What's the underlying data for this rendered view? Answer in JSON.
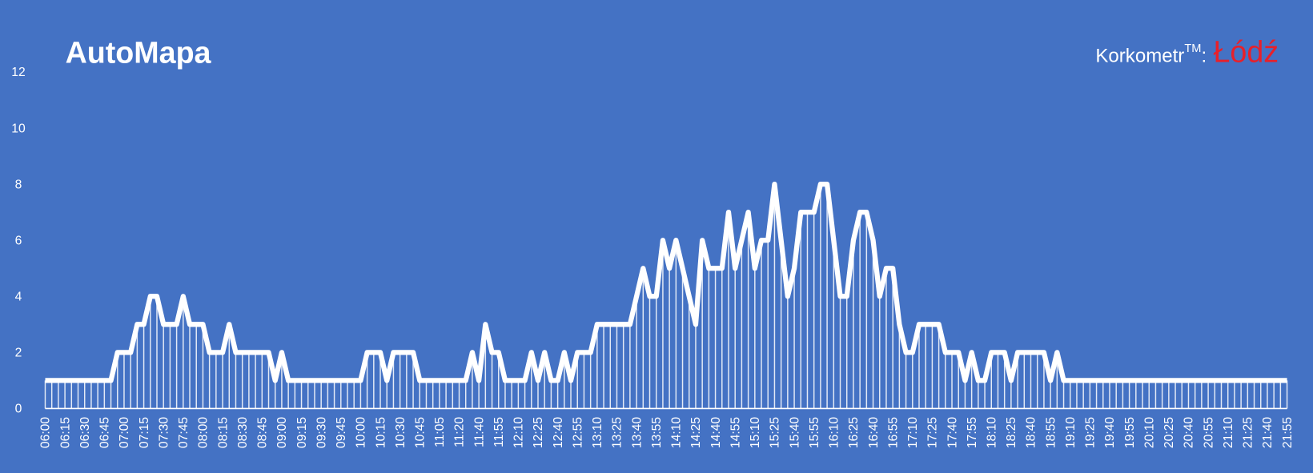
{
  "chart_data": {
    "type": "line",
    "title": "AutoMapa",
    "brand": {
      "name": "Korkometr",
      "mark": "TM",
      "separator": ":",
      "city": "Łódź"
    },
    "color": "#ffffff",
    "drop_lines": true,
    "ylim": [
      0,
      12
    ],
    "yticks": [
      0,
      2,
      4,
      6,
      8,
      10,
      12
    ],
    "categories": [
      "06:00",
      null,
      null,
      "06:15",
      null,
      null,
      "06:30",
      null,
      null,
      "06:45",
      null,
      null,
      "07:00",
      null,
      null,
      "07:15",
      null,
      null,
      "07:30",
      null,
      null,
      "07:45",
      null,
      null,
      "08:00",
      null,
      null,
      "08:15",
      null,
      null,
      "08:30",
      null,
      null,
      "08:45",
      null,
      null,
      "09:00",
      null,
      null,
      "09:15",
      null,
      null,
      "09:30",
      null,
      null,
      "09:45",
      null,
      null,
      "10:00",
      null,
      null,
      "10:15",
      null,
      null,
      "10:30",
      null,
      null,
      "10:45",
      null,
      null,
      "11:05",
      null,
      null,
      "11:20",
      null,
      null,
      "11:40",
      null,
      null,
      "11:55",
      null,
      null,
      "12:10",
      null,
      null,
      "12:25",
      null,
      null,
      "12:40",
      null,
      null,
      "12:55",
      null,
      null,
      "13:10",
      null,
      null,
      "13:25",
      null,
      null,
      "13:40",
      null,
      null,
      "13:55",
      null,
      null,
      "14:10",
      null,
      null,
      "14:25",
      null,
      null,
      "14:40",
      null,
      null,
      "14:55",
      null,
      null,
      "15:10",
      null,
      null,
      "15:25",
      null,
      null,
      "15:40",
      null,
      null,
      "15:55",
      null,
      null,
      "16:10",
      null,
      null,
      "16:25",
      null,
      null,
      "16:40",
      null,
      null,
      "16:55",
      null,
      null,
      "17:10",
      null,
      null,
      "17:25",
      null,
      null,
      "17:40",
      null,
      null,
      "17:55",
      null,
      null,
      "18:10",
      null,
      null,
      "18:25",
      null,
      null,
      "18:40",
      null,
      null,
      "18:55",
      null,
      null,
      "19:10",
      null,
      null,
      "19:25",
      null,
      null,
      "19:40",
      null,
      null,
      "19:55",
      null,
      null,
      "20:10",
      null,
      null,
      "20:25",
      null,
      null,
      "20:40",
      null,
      null,
      "20:55",
      null,
      null,
      "21:10",
      null,
      null,
      "21:25",
      null,
      null,
      "21:40",
      null,
      null,
      "21:55"
    ],
    "values": [
      1,
      1,
      1,
      1,
      1,
      1,
      1,
      1,
      1,
      1,
      1,
      2,
      2,
      2,
      3,
      3,
      4,
      4,
      3,
      3,
      3,
      4,
      3,
      3,
      3,
      2,
      2,
      2,
      3,
      2,
      2,
      2,
      2,
      2,
      2,
      1,
      2,
      1,
      1,
      1,
      1,
      1,
      1,
      1,
      1,
      1,
      1,
      1,
      1,
      2,
      2,
      2,
      1,
      2,
      2,
      2,
      2,
      1,
      1,
      1,
      1,
      1,
      1,
      1,
      1,
      2,
      1,
      3,
      2,
      2,
      1,
      1,
      1,
      1,
      2,
      1,
      2,
      1,
      1,
      2,
      1,
      2,
      2,
      2,
      3,
      3,
      3,
      3,
      3,
      3,
      4,
      5,
      4,
      4,
      6,
      5,
      6,
      5,
      4,
      3,
      6,
      5,
      5,
      5,
      7,
      5,
      6,
      7,
      5,
      6,
      6,
      8,
      6,
      4,
      5,
      7,
      7,
      7,
      8,
      8,
      6,
      4,
      4,
      6,
      7,
      7,
      6,
      4,
      5,
      5,
      3,
      2,
      2,
      3,
      3,
      3,
      3,
      2,
      2,
      2,
      1,
      2,
      1,
      1,
      2,
      2,
      2,
      1,
      2,
      2,
      2,
      2,
      2,
      1,
      2,
      1,
      1,
      1,
      1,
      1,
      1,
      1,
      1,
      1,
      1,
      1,
      1,
      1,
      1,
      1,
      1,
      1,
      1,
      1,
      1,
      1,
      1,
      1,
      1,
      1,
      1,
      1,
      1,
      1,
      1,
      1,
      1,
      1,
      1,
      1
    ]
  }
}
